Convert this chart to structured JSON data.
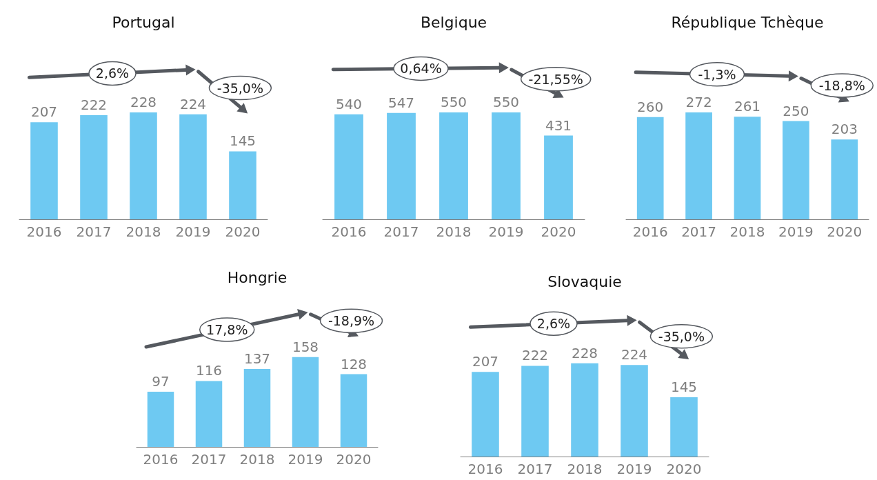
{
  "chart_data": [
    {
      "type": "bar",
      "title": "Portugal",
      "categories": [
        "2016",
        "2017",
        "2018",
        "2019",
        "2020"
      ],
      "values": [
        207,
        222,
        228,
        224,
        145
      ],
      "color": "#6ec9f2",
      "data_labels": true,
      "tick_labels": "x",
      "grid": false,
      "legend": false,
      "annotations": [
        "2,6%",
        "-35,0%"
      ]
    },
    {
      "type": "bar",
      "title": "Belgique",
      "categories": [
        "2016",
        "2017",
        "2018",
        "2019",
        "2020"
      ],
      "values": [
        540,
        547,
        550,
        550,
        431
      ],
      "color": "#6ec9f2",
      "data_labels": true,
      "tick_labels": "x",
      "grid": false,
      "legend": false,
      "annotations": [
        "0,64%",
        "-21,55%"
      ]
    },
    {
      "type": "bar",
      "title": "République Tchèque",
      "categories": [
        "2016",
        "2017",
        "2018",
        "2019",
        "2020"
      ],
      "values": [
        260,
        272,
        261,
        250,
        203
      ],
      "color": "#6ec9f2",
      "data_labels": true,
      "tick_labels": "x",
      "grid": false,
      "legend": false,
      "annotations": [
        "-1,3%",
        "-18,8%"
      ]
    },
    {
      "type": "bar",
      "title": "Hongrie",
      "categories": [
        "2016",
        "2017",
        "2018",
        "2019",
        "2020"
      ],
      "values": [
        97,
        116,
        137,
        158,
        128
      ],
      "color": "#6ec9f2",
      "data_labels": true,
      "tick_labels": "x",
      "grid": false,
      "legend": false,
      "annotations": [
        "17,8%",
        "-18,9%"
      ]
    },
    {
      "type": "bar",
      "title": "Slovaquie",
      "categories": [
        "2016",
        "2017",
        "2018",
        "2019",
        "2020"
      ],
      "values": [
        207,
        222,
        228,
        224,
        145
      ],
      "color": "#6ec9f2",
      "data_labels": true,
      "tick_labels": "x",
      "grid": false,
      "legend": false,
      "annotations": [
        "2,6%",
        "-35,0%"
      ]
    }
  ]
}
